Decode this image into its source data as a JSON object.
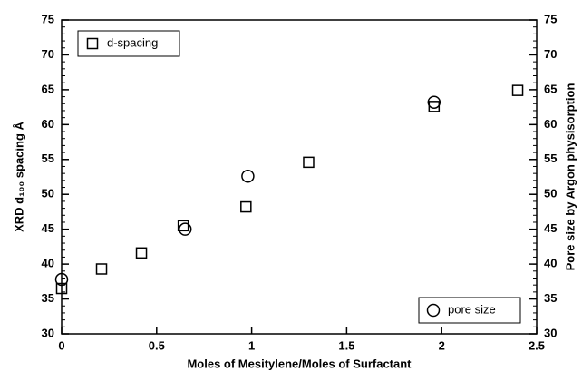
{
  "chart_data": {
    "type": "scatter",
    "xlabel": "Moles of Mesitylene/Moles of Surfactant",
    "ylabel": "XRD d₁₀₀ spacing Å",
    "y2label": "Pore size by Argon physisorption",
    "xlim": [
      0,
      2.5
    ],
    "xticks": [
      0,
      0.5,
      1,
      1.5,
      2,
      2.5
    ],
    "ylim": [
      30,
      75
    ],
    "yticks": [
      30,
      35,
      40,
      45,
      50,
      55,
      60,
      65,
      70,
      75
    ],
    "y2lim": [
      30,
      75
    ],
    "y2ticks": [
      30,
      35,
      40,
      45,
      50,
      55,
      60,
      65,
      70,
      75
    ],
    "series": [
      {
        "name": "d-spacing",
        "marker": "square",
        "color": "#000000",
        "legend_loc": "upper left",
        "x": [
          0,
          0.21,
          0.42,
          0.64,
          0.97,
          1.3,
          1.96,
          2.4
        ],
        "values": [
          36.5,
          39.3,
          41.6,
          45.5,
          48.2,
          54.6,
          62.6,
          64.9
        ]
      },
      {
        "name": "pore size",
        "marker": "circle",
        "color": "#000000",
        "legend_loc": "lower right",
        "axis": "y2",
        "x": [
          0,
          0.65,
          0.98,
          1.96
        ],
        "values": [
          37.8,
          45,
          52.6,
          63.2
        ]
      }
    ]
  }
}
